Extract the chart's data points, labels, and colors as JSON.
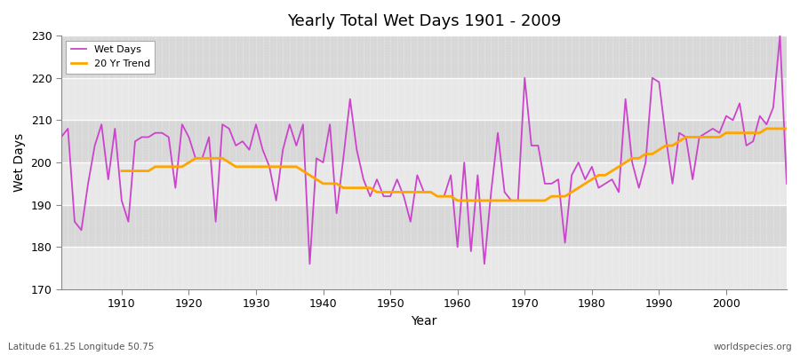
{
  "title": "Yearly Total Wet Days 1901 - 2009",
  "xlabel": "Year",
  "ylabel": "Wet Days",
  "lat_lon_label": "Latitude 61.25 Longitude 50.75",
  "source_label": "worldspecies.org",
  "ylim": [
    170,
    230
  ],
  "yticks": [
    170,
    180,
    190,
    200,
    210,
    220,
    230
  ],
  "line_color": "#CC44CC",
  "trend_color": "#FFA500",
  "bg_color": "#E0E0E0",
  "band_color_light": "#DCDCDC",
  "band_color_dark": "#D0D0D0",
  "years": [
    1901,
    1902,
    1903,
    1904,
    1905,
    1906,
    1907,
    1908,
    1909,
    1910,
    1911,
    1912,
    1913,
    1914,
    1915,
    1916,
    1917,
    1918,
    1919,
    1920,
    1921,
    1922,
    1923,
    1924,
    1925,
    1926,
    1927,
    1928,
    1929,
    1930,
    1931,
    1932,
    1933,
    1934,
    1935,
    1936,
    1937,
    1938,
    1939,
    1940,
    1941,
    1942,
    1943,
    1944,
    1945,
    1946,
    1947,
    1948,
    1949,
    1950,
    1951,
    1952,
    1953,
    1954,
    1955,
    1956,
    1957,
    1958,
    1959,
    1960,
    1961,
    1962,
    1963,
    1964,
    1965,
    1966,
    1967,
    1968,
    1969,
    1970,
    1971,
    1972,
    1973,
    1974,
    1975,
    1976,
    1977,
    1978,
    1979,
    1980,
    1981,
    1982,
    1983,
    1984,
    1985,
    1986,
    1987,
    1988,
    1989,
    1990,
    1991,
    1992,
    1993,
    1994,
    1995,
    1996,
    1997,
    1998,
    1999,
    2000,
    2001,
    2002,
    2003,
    2004,
    2005,
    2006,
    2007,
    2008,
    2009
  ],
  "wet_days": [
    206,
    208,
    186,
    184,
    195,
    204,
    209,
    196,
    208,
    191,
    186,
    205,
    206,
    206,
    207,
    207,
    206,
    194,
    209,
    206,
    201,
    201,
    206,
    186,
    209,
    208,
    204,
    205,
    203,
    209,
    203,
    199,
    191,
    203,
    209,
    204,
    209,
    176,
    201,
    200,
    209,
    188,
    201,
    215,
    203,
    196,
    192,
    196,
    192,
    192,
    196,
    192,
    186,
    197,
    193,
    193,
    192,
    192,
    197,
    180,
    200,
    179,
    197,
    176,
    193,
    207,
    193,
    191,
    191,
    220,
    204,
    204,
    195,
    195,
    196,
    181,
    197,
    200,
    196,
    199,
    194,
    195,
    196,
    193,
    215,
    200,
    194,
    200,
    220,
    219,
    206,
    195,
    207,
    206,
    196,
    206,
    207,
    208,
    207,
    211,
    210,
    214,
    204,
    205,
    211,
    209,
    213,
    230,
    195
  ],
  "trend_years": [
    1910,
    1911,
    1912,
    1913,
    1914,
    1915,
    1916,
    1917,
    1918,
    1919,
    1920,
    1921,
    1922,
    1923,
    1924,
    1925,
    1926,
    1927,
    1928,
    1929,
    1930,
    1931,
    1932,
    1933,
    1934,
    1935,
    1936,
    1937,
    1938,
    1939,
    1940,
    1941,
    1942,
    1943,
    1944,
    1945,
    1946,
    1947,
    1948,
    1949,
    1950,
    1951,
    1952,
    1953,
    1954,
    1955,
    1956,
    1957,
    1958,
    1959,
    1960,
    1961,
    1962,
    1963,
    1964,
    1965,
    1966,
    1967,
    1968,
    1969,
    1970,
    1971,
    1972,
    1973,
    1974,
    1975,
    1976,
    1977,
    1978,
    1979,
    1980,
    1981,
    1982,
    1983,
    1984,
    1985,
    1986,
    1987,
    1988,
    1989,
    1990,
    1991,
    1992,
    1993,
    1994,
    1995,
    1996,
    1997,
    1998,
    1999,
    2000,
    2001,
    2002,
    2003,
    2004,
    2005,
    2006,
    2007,
    2008,
    2009
  ],
  "trend_values": [
    198,
    198,
    198,
    198,
    198,
    199,
    199,
    199,
    199,
    199,
    200,
    201,
    201,
    201,
    201,
    201,
    200,
    199,
    199,
    199,
    199,
    199,
    199,
    199,
    199,
    199,
    199,
    198,
    197,
    196,
    195,
    195,
    195,
    194,
    194,
    194,
    194,
    194,
    193,
    193,
    193,
    193,
    193,
    193,
    193,
    193,
    193,
    192,
    192,
    192,
    191,
    191,
    191,
    191,
    191,
    191,
    191,
    191,
    191,
    191,
    191,
    191,
    191,
    191,
    192,
    192,
    192,
    193,
    194,
    195,
    196,
    197,
    197,
    198,
    199,
    200,
    201,
    201,
    202,
    202,
    203,
    204,
    204,
    205,
    206,
    206,
    206,
    206,
    206,
    206,
    207,
    207,
    207,
    207,
    207,
    207,
    208,
    208,
    208,
    208
  ]
}
